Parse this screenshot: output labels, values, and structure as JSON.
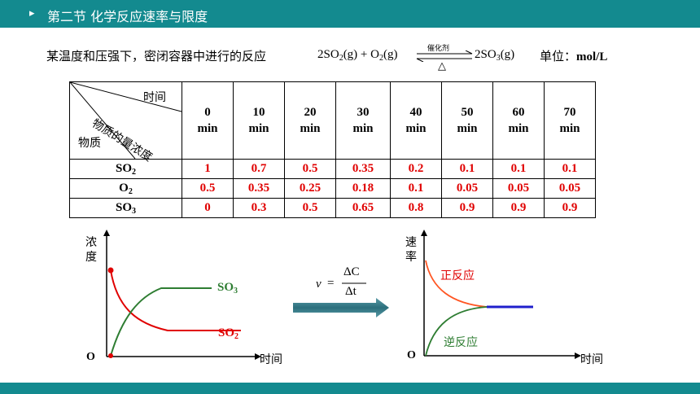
{
  "header": {
    "arrow_icon": "▸",
    "title": "第二节  化学反应速率与限度"
  },
  "intro": {
    "text": "某温度和压强下，密闭容器中进行的反应",
    "unit_label": "单位：",
    "unit": "mol/L"
  },
  "equation": {
    "reactant1": "2SO",
    "r1_sub": "2",
    "r1_state": "(g) + O",
    "r2_sub": "2",
    "r2_state": "(g)",
    "catalyst": "催化剂",
    "condition": "△",
    "product": "2SO",
    "p_sub": "3",
    "p_state": "(g)"
  },
  "table": {
    "corner_time": "时间",
    "corner_conc": "物质的量浓度",
    "corner_substance": "物质",
    "columns": [
      {
        "num": "0",
        "unit": "min"
      },
      {
        "num": "10",
        "unit": "min"
      },
      {
        "num": "20",
        "unit": "min"
      },
      {
        "num": "30",
        "unit": "min"
      },
      {
        "num": "40",
        "unit": "min"
      },
      {
        "num": "50",
        "unit": "min"
      },
      {
        "num": "60",
        "unit": "min"
      },
      {
        "num": "70",
        "unit": "min"
      }
    ],
    "rows": [
      {
        "name": "SO",
        "sub": "2",
        "values": [
          "1",
          "0.7",
          "0.5",
          "0.35",
          "0.2",
          "0.1",
          "0.1",
          "0.1"
        ]
      },
      {
        "name": "O",
        "sub": "2",
        "values": [
          "0.5",
          "0.35",
          "0.25",
          "0.18",
          "0.1",
          "0.05",
          "0.05",
          "0.05"
        ]
      },
      {
        "name": "SO",
        "sub": "3",
        "values": [
          "0",
          "0.3",
          "0.5",
          "0.65",
          "0.8",
          "0.9",
          "0.9",
          "0.9"
        ]
      }
    ]
  },
  "left_chart": {
    "ylabel_1": "浓",
    "ylabel_2": "度",
    "xlabel": "时间",
    "origin": "O",
    "so3_label": "SO",
    "so3_sub": "3",
    "so2_label": "SO",
    "so2_sub": "2",
    "colors": {
      "so3": "#2e7d32",
      "so2": "#e00000"
    }
  },
  "formula": {
    "v": "v",
    "eq": "=",
    "num": "ΔC",
    "den": "Δt"
  },
  "right_chart": {
    "ylabel_1": "速",
    "ylabel_2": "率",
    "xlabel": "时间",
    "origin": "O",
    "forward": "正反应",
    "reverse": "逆反应",
    "colors": {
      "forward": "#ff5522",
      "reverse": "#2e7d32",
      "equilibrium": "#1f1fcc"
    }
  }
}
